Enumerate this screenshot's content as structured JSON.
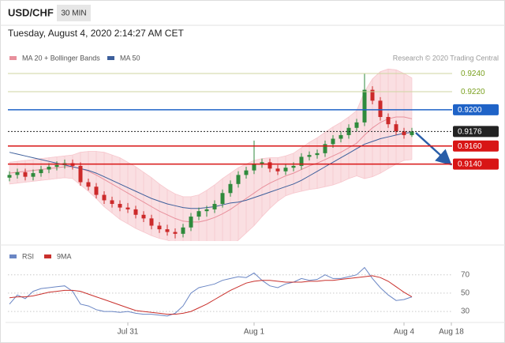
{
  "header": {
    "symbol": "USD/CHF",
    "interval": "30 MIN",
    "timestamp": "Tuesday, August 4, 2020 2:14:27 AM CET",
    "source": "Research © 2020 Trading Central"
  },
  "chart_data": [
    {
      "type": "candlestick",
      "up_color": "#2f8a3c",
      "down_color": "#cc2a2a",
      "xlim": [
        -0.5,
        57.5
      ],
      "ylim": [
        0.9055,
        0.9247
      ],
      "open": [
        0.9125,
        0.9128,
        0.9131,
        0.9126,
        0.913,
        0.9134,
        0.9137,
        0.9139,
        0.9141,
        0.9138,
        0.912,
        0.9115,
        0.9106,
        0.91,
        0.9096,
        0.9092,
        0.909,
        0.9084,
        0.908,
        0.9072,
        0.9068,
        0.9065,
        0.9063,
        0.907,
        0.9082,
        0.9088,
        0.909,
        0.9096,
        0.9108,
        0.9118,
        0.9128,
        0.9133,
        0.914,
        0.9142,
        0.9135,
        0.9132,
        0.9136,
        0.9138,
        0.9148,
        0.915,
        0.9152,
        0.9162,
        0.9168,
        0.9172,
        0.918,
        0.9186,
        0.9222,
        0.921,
        0.9192,
        0.9184,
        0.9176,
        0.9172
      ],
      "high": [
        0.9132,
        0.9135,
        0.9135,
        0.9134,
        0.9138,
        0.9141,
        0.9143,
        0.9145,
        0.9145,
        0.9142,
        0.9124,
        0.9119,
        0.911,
        0.9104,
        0.91,
        0.9097,
        0.9094,
        0.9088,
        0.9084,
        0.9076,
        0.9073,
        0.9069,
        0.9074,
        0.9086,
        0.9092,
        0.9094,
        0.91,
        0.9112,
        0.9122,
        0.9132,
        0.9137,
        0.9166,
        0.9146,
        0.9146,
        0.9139,
        0.914,
        0.9142,
        0.9152,
        0.9154,
        0.9156,
        0.9166,
        0.9172,
        0.9176,
        0.9184,
        0.919,
        0.924,
        0.9226,
        0.9214,
        0.9196,
        0.9188,
        0.918,
        0.918
      ],
      "low": [
        0.9121,
        0.9124,
        0.9122,
        0.9122,
        0.9126,
        0.913,
        0.9133,
        0.9135,
        0.9134,
        0.9116,
        0.9111,
        0.9102,
        0.9096,
        0.9092,
        0.9088,
        0.9086,
        0.908,
        0.9076,
        0.9068,
        0.9064,
        0.9061,
        0.9058,
        0.9059,
        0.9066,
        0.9078,
        0.9082,
        0.9086,
        0.9092,
        0.9104,
        0.9114,
        0.9124,
        0.9129,
        0.9136,
        0.9131,
        0.9128,
        0.9128,
        0.9132,
        0.9134,
        0.9144,
        0.9146,
        0.9148,
        0.9158,
        0.9164,
        0.9168,
        0.9176,
        0.9182,
        0.9206,
        0.9188,
        0.918,
        0.9172,
        0.9168,
        0.917
      ],
      "close": [
        0.9128,
        0.9131,
        0.9126,
        0.913,
        0.9134,
        0.9137,
        0.9139,
        0.9141,
        0.9138,
        0.912,
        0.9115,
        0.9106,
        0.91,
        0.9096,
        0.9092,
        0.909,
        0.9084,
        0.908,
        0.9072,
        0.9068,
        0.9065,
        0.9063,
        0.907,
        0.9082,
        0.9088,
        0.909,
        0.9096,
        0.9108,
        0.9118,
        0.9128,
        0.9133,
        0.914,
        0.9142,
        0.9135,
        0.9132,
        0.9136,
        0.9138,
        0.9148,
        0.915,
        0.9152,
        0.9162,
        0.9168,
        0.9172,
        0.918,
        0.9186,
        0.9222,
        0.921,
        0.9192,
        0.9184,
        0.9176,
        0.9172,
        0.9176
      ],
      "series": [
        {
          "name": "MA 20 + Bollinger Bands",
          "color": "#e8909c",
          "band_color": "#f7c9cf",
          "values": [
            0.913,
            0.9131,
            0.9132,
            0.9133,
            0.9134,
            0.9135,
            0.9136,
            0.9137,
            0.9137,
            0.9135,
            0.9132,
            0.9128,
            0.9123,
            0.9118,
            0.9113,
            0.9108,
            0.9103,
            0.9098,
            0.9093,
            0.9088,
            0.9084,
            0.908,
            0.9077,
            0.9076,
            0.9076,
            0.9078,
            0.9081,
            0.9085,
            0.909,
            0.9096,
            0.9102,
            0.9108,
            0.9114,
            0.9119,
            0.9123,
            0.9127,
            0.913,
            0.9134,
            0.9138,
            0.9141,
            0.9145,
            0.9149,
            0.9153,
            0.9158,
            0.9163,
            0.9172,
            0.918,
            0.9186,
            0.919,
            0.9192,
            0.9192,
            0.919
          ],
          "upper": [
            0.9142,
            0.9143,
            0.9144,
            0.9145,
            0.9146,
            0.9147,
            0.9148,
            0.9149,
            0.915,
            0.9153,
            0.9154,
            0.9154,
            0.9153,
            0.915,
            0.9147,
            0.9142,
            0.9137,
            0.9131,
            0.9125,
            0.9118,
            0.9112,
            0.9107,
            0.9104,
            0.9104,
            0.9106,
            0.9111,
            0.9117,
            0.9124,
            0.913,
            0.9136,
            0.914,
            0.9144,
            0.9146,
            0.9147,
            0.9147,
            0.9149,
            0.9152,
            0.9158,
            0.9164,
            0.9169,
            0.9175,
            0.9181,
            0.9186,
            0.9192,
            0.9199,
            0.922,
            0.9234,
            0.9242,
            0.9245,
            0.9244,
            0.924,
            0.9235
          ],
          "lower": [
            0.9118,
            0.9119,
            0.912,
            0.9121,
            0.9122,
            0.9123,
            0.9124,
            0.9125,
            0.9124,
            0.9117,
            0.911,
            0.9102,
            0.9093,
            0.9086,
            0.9079,
            0.9074,
            0.9069,
            0.9065,
            0.9061,
            0.9058,
            0.9056,
            0.9053,
            0.905,
            0.9048,
            0.9046,
            0.9045,
            0.9045,
            0.9046,
            0.905,
            0.9056,
            0.9064,
            0.9072,
            0.9082,
            0.9091,
            0.9099,
            0.9105,
            0.9108,
            0.911,
            0.9112,
            0.9113,
            0.9115,
            0.9117,
            0.912,
            0.9124,
            0.9127,
            0.9124,
            0.9126,
            0.913,
            0.9135,
            0.914,
            0.9144,
            0.9145
          ]
        },
        {
          "name": "MA 50",
          "color": "#3d5f9b",
          "values": [
            0.9153,
            0.9151,
            0.9149,
            0.9147,
            0.9145,
            0.9143,
            0.9141,
            0.9139,
            0.9137,
            0.9135,
            0.9133,
            0.913,
            0.9126,
            0.9122,
            0.9118,
            0.9114,
            0.911,
            0.9106,
            0.9102,
            0.9099,
            0.9096,
            0.9094,
            0.9092,
            0.9091,
            0.9091,
            0.9092,
            0.9093,
            0.9095,
            0.9097,
            0.9098,
            0.91,
            0.9103,
            0.9106,
            0.9109,
            0.9112,
            0.9115,
            0.9118,
            0.9122,
            0.9127,
            0.9132,
            0.9137,
            0.9142,
            0.9147,
            0.9152,
            0.9157,
            0.9162,
            0.9165,
            0.9168,
            0.917,
            0.9172,
            0.9174,
            0.9175
          ]
        }
      ],
      "levels": [
        {
          "value": 0.924,
          "label": "0.9240",
          "color": "#cfd6a0",
          "text_color": "#7aa01f",
          "box": false,
          "dotted": false
        },
        {
          "value": 0.922,
          "label": "0.9220",
          "color": "#cfd6a0",
          "text_color": "#7aa01f",
          "box": false,
          "dotted": false
        },
        {
          "value": 0.92,
          "label": "0.9200",
          "color": "#1f63c7",
          "text_color": "#ffffff",
          "box": true,
          "dotted": false
        },
        {
          "value": 0.9176,
          "label": "0.9176",
          "color": "#222222",
          "text_color": "#ffffff",
          "box": true,
          "dotted": true
        },
        {
          "value": 0.916,
          "label": "0.9160",
          "color": "#d81515",
          "text_color": "#ffffff",
          "box": true,
          "dotted": false
        },
        {
          "value": 0.914,
          "label": "0.9140",
          "color": "#d81515",
          "text_color": "#ffffff",
          "box": true,
          "dotted": false
        }
      ]
    },
    {
      "type": "line",
      "xlim": [
        -0.5,
        57.5
      ],
      "ylim": [
        18,
        81
      ],
      "yticks": [
        30,
        50,
        70
      ],
      "grid": true,
      "xticks": [
        {
          "value": 15,
          "label": "Jul 31"
        },
        {
          "value": 31,
          "label": "Aug 1"
        },
        {
          "value": 50,
          "label": "Aug 4"
        },
        {
          "value": 56,
          "label": "Aug 18"
        }
      ],
      "series": [
        {
          "name": "RSI",
          "color": "#6a86c4",
          "values": [
            38,
            48,
            44,
            52,
            55,
            56,
            57,
            58,
            52,
            38,
            36,
            32,
            30,
            30,
            29,
            30,
            28,
            27,
            27,
            26,
            25,
            28,
            36,
            50,
            56,
            58,
            60,
            64,
            66,
            68,
            67,
            72,
            64,
            58,
            56,
            60,
            62,
            66,
            64,
            65,
            70,
            66,
            66,
            68,
            70,
            78,
            66,
            56,
            48,
            42,
            43,
            46
          ]
        },
        {
          "name": "9MA",
          "color": "#c9302c",
          "values": [
            45,
            46,
            46,
            47,
            49,
            51,
            52,
            53,
            53,
            52,
            49,
            46,
            43,
            40,
            37,
            34,
            31,
            30,
            29,
            28,
            27,
            27,
            28,
            30,
            34,
            38,
            43,
            48,
            53,
            57,
            61,
            63,
            64,
            64,
            63,
            62,
            62,
            62,
            63,
            63,
            64,
            64,
            65,
            66,
            67,
            68,
            69,
            67,
            63,
            57,
            51,
            46
          ]
        }
      ]
    }
  ]
}
